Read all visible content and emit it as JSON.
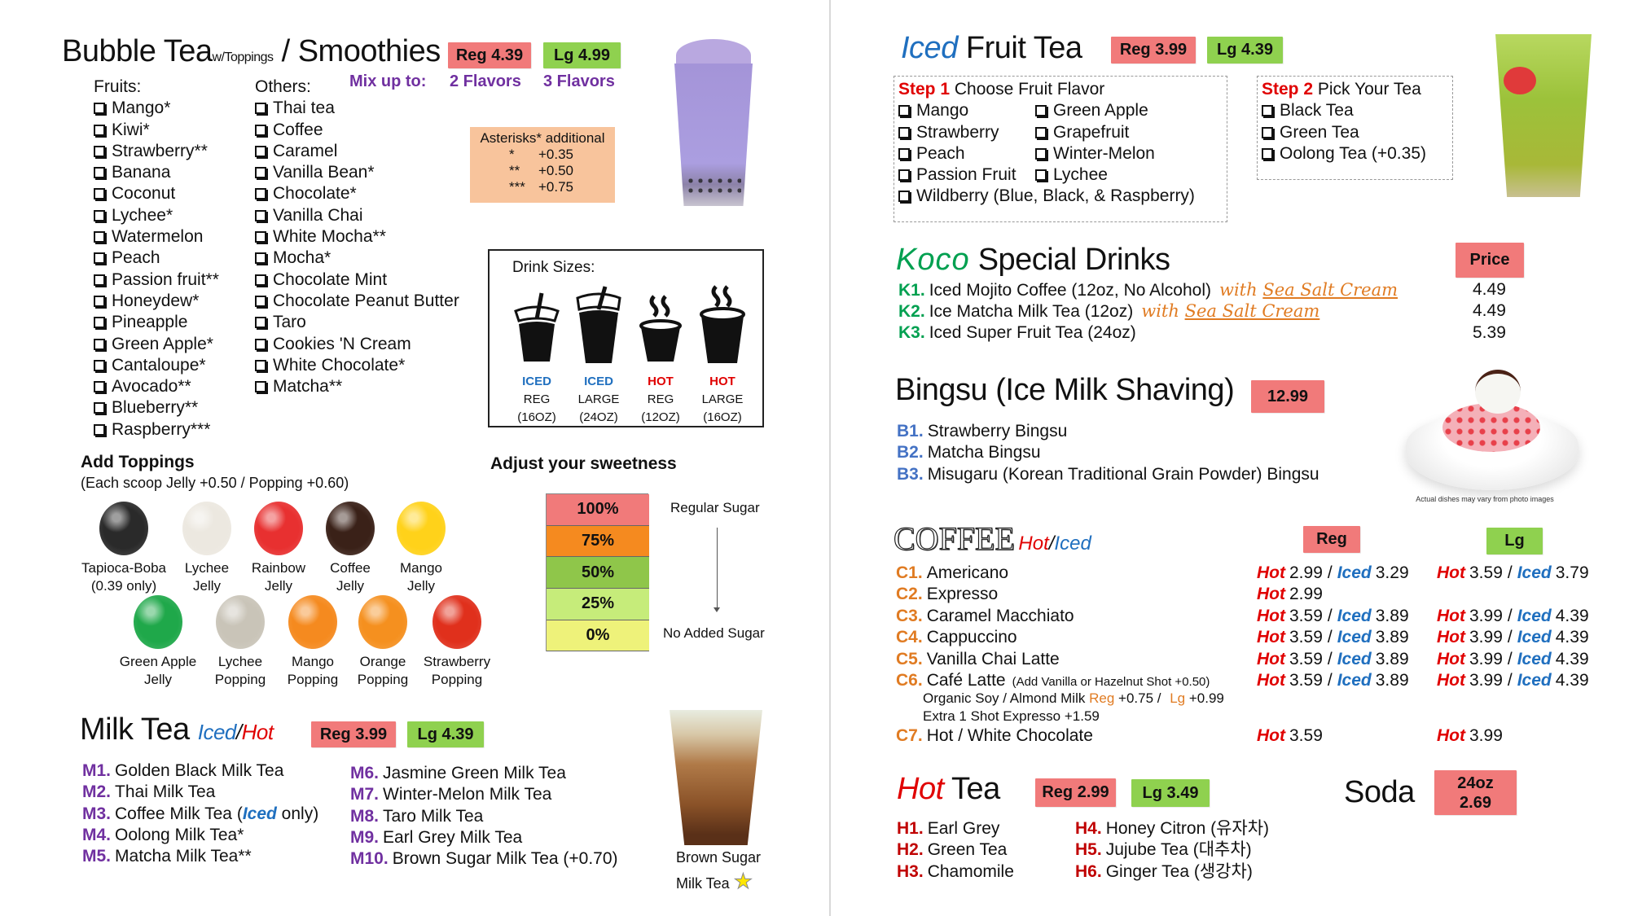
{
  "bubble_tea": {
    "title": "Bubble Tea",
    "title_small": "w/Toppings",
    "title_rest": "/ Smoothies",
    "reg_price": "Reg 4.39",
    "lg_price": "Lg 4.99",
    "mix_label": "Mix up to:",
    "mix_reg": "2 Flavors",
    "mix_lg": "3 Flavors",
    "fruits_label": "Fruits:",
    "fruits": [
      "Mango*",
      "Kiwi*",
      "Strawberry**",
      "Banana",
      "Coconut",
      "Lychee*",
      "Watermelon",
      "Peach",
      "Passion fruit**",
      "Honeydew*",
      "Pineapple",
      "Green Apple*",
      "Cantaloupe*",
      "Avocado**",
      "Blueberry**",
      "Raspberry***"
    ],
    "others_label": "Others:",
    "others": [
      "Thai tea",
      "Coffee",
      "Caramel",
      "Vanilla Bean*",
      "Chocolate*",
      "Vanilla Chai",
      "White Mocha**",
      "Mocha*",
      "Chocolate Mint",
      "Chocolate Peanut Butter",
      "Taro",
      "Cookies 'N Cream",
      "White Chocolate*",
      "Matcha**"
    ],
    "asterisks": {
      "title": "Asterisks* additional",
      "rows": [
        {
          "mark": "*",
          "price": "+0.35"
        },
        {
          "mark": "**",
          "price": "+0.50"
        },
        {
          "mark": "***",
          "price": "+0.75"
        }
      ]
    }
  },
  "drink_sizes": {
    "title": "Drink Sizes:",
    "cups": [
      {
        "type": "ICED",
        "size": "REG",
        "oz": "(16OZ)",
        "color": "#1f6fbf"
      },
      {
        "type": "ICED",
        "size": "LARGE",
        "oz": "(24OZ)",
        "color": "#1f6fbf"
      },
      {
        "type": "HOT",
        "size": "REG",
        "oz": "(12OZ)",
        "color": "#e00000"
      },
      {
        "type": "HOT",
        "size": "LARGE",
        "oz": "(16OZ)",
        "color": "#e00000"
      }
    ]
  },
  "toppings": {
    "title": "Add Toppings",
    "subtitle": "(Each scoop Jelly +0.50 / Popping +0.60)",
    "row1": [
      {
        "name": "Tapioca-Boba",
        "note": "(0.39 only)",
        "color": "#2a2a2a"
      },
      {
        "name": "Lychee",
        "note": "Jelly",
        "color": "#ece8e0"
      },
      {
        "name": "Rainbow",
        "note": "Jelly",
        "color": "#e83030"
      },
      {
        "name": "Coffee",
        "note": "Jelly",
        "color": "#3a2118"
      },
      {
        "name": "Mango",
        "note": "Jelly",
        "color": "#ffd21a"
      }
    ],
    "row2": [
      {
        "name": "Green Apple",
        "note": "Jelly",
        "color": "#1fa84a"
      },
      {
        "name": "Lychee",
        "note": "Popping",
        "color": "#c9c4b8"
      },
      {
        "name": "Mango",
        "note": "Popping",
        "color": "#f58a1f"
      },
      {
        "name": "Orange",
        "note": "Popping",
        "color": "#f5901f"
      },
      {
        "name": "Strawberry",
        "note": "Popping",
        "color": "#e0301c"
      }
    ]
  },
  "sweetness": {
    "title": "Adjust your sweetness",
    "levels": [
      {
        "label": "100%",
        "color": "#f17a7a"
      },
      {
        "label": "75%",
        "color": "#f58a1f"
      },
      {
        "label": "50%",
        "color": "#8fc64a"
      },
      {
        "label": "25%",
        "color": "#c6ec7a"
      },
      {
        "label": "0%",
        "color": "#eef27a"
      }
    ],
    "top_label": "Regular Sugar",
    "bottom_label": "No Added Sugar"
  },
  "milk_tea": {
    "title": "Milk Tea",
    "iced": "Iced",
    "slash": "/",
    "hot": "Hot",
    "reg_price": "Reg 3.99",
    "lg_price": "Lg 4.39",
    "items_left": [
      {
        "code": "M1.",
        "name": "Golden Black Milk Tea"
      },
      {
        "code": "M2.",
        "name": "Thai Milk Tea"
      },
      {
        "code": "M3.",
        "name": "Coffee Milk Tea (",
        "iced": "Iced",
        "after": " only)"
      },
      {
        "code": "M4.",
        "name": "Oolong Milk Tea*"
      },
      {
        "code": "M5.",
        "name": "Matcha Milk Tea**"
      }
    ],
    "items_right": [
      {
        "code": "M6.",
        "name": "Jasmine Green Milk Tea"
      },
      {
        "code": "M7.",
        "name": "Winter-Melon Milk Tea"
      },
      {
        "code": "M8.",
        "name": "Taro Milk Tea"
      },
      {
        "code": "M9.",
        "name": "Earl Grey Milk Tea"
      },
      {
        "code": "M10.",
        "name": "Brown Sugar Milk Tea (+0.70)"
      }
    ],
    "feature_line1": "Brown Sugar",
    "feature_line2": "Milk Tea"
  },
  "fruit_tea": {
    "title_iced": "Iced",
    "title_rest": "Fruit Tea",
    "reg_price": "Reg 3.99",
    "lg_price": "Lg 4.39",
    "step1_label": "Step 1",
    "step1_text": "Choose Fruit Flavor",
    "step1_col1": [
      "Mango",
      "Strawberry",
      "Peach",
      "Passion Fruit"
    ],
    "step1_col2": [
      "Green Apple",
      "Grapefruit",
      "Winter-Melon",
      "Lychee"
    ],
    "step1_wide": "Wildberry (Blue, Black, & Raspberry)",
    "step2_label": "Step 2",
    "step2_text": "Pick Your Tea",
    "step2_items": [
      "Black Tea",
      "Green Tea",
      "Oolong Tea (+0.35)"
    ]
  },
  "koco": {
    "title_brand": "Koco",
    "title_rest": "Special Drinks",
    "price_header": "Price",
    "items": [
      {
        "code": "K1.",
        "name": "Iced Mojito Coffee (12oz, No Alcohol)",
        "with": "with",
        "extra": "Sea Salt Cream",
        "price": "4.49"
      },
      {
        "code": "K2.",
        "name": "Ice Matcha Milk Tea (12oz)",
        "with": "with",
        "extra": "Sea Salt Cream",
        "price": "4.49"
      },
      {
        "code": "K3.",
        "name": "Iced Super Fruit Tea (24oz)",
        "price": "5.39"
      }
    ]
  },
  "bingsu": {
    "title": "Bingsu (Ice Milk Shaving)",
    "price": "12.99",
    "items": [
      {
        "code": "B1.",
        "name": "Strawberry Bingsu"
      },
      {
        "code": "B2.",
        "name": "Matcha Bingsu"
      },
      {
        "code": "B3.",
        "name": "Misugaru (Korean Traditional Grain Powder) Bingsu"
      }
    ],
    "photo_note": "Actual dishes may vary from photo images"
  },
  "coffee": {
    "title": "COFFEE",
    "hot_label": "Hot",
    "slash": "/",
    "iced_label": "Iced",
    "reg_header": "Reg",
    "lg_header": "Lg",
    "items": [
      {
        "code": "C1.",
        "name": "Americano",
        "reg_hot": "2.99",
        "reg_iced": "3.29",
        "lg_hot": "3.59",
        "lg_iced": "3.79"
      },
      {
        "code": "C2.",
        "name": "Expresso",
        "reg_hot": "2.99"
      },
      {
        "code": "C3.",
        "name": "Caramel Macchiato",
        "reg_hot": "3.59",
        "reg_iced": "3.89",
        "lg_hot": "3.99",
        "lg_iced": "4.39"
      },
      {
        "code": "C4.",
        "name": "Cappuccino",
        "reg_hot": "3.59",
        "reg_iced": "3.89",
        "lg_hot": "3.99",
        "lg_iced": "4.39"
      },
      {
        "code": "C5.",
        "name": "Vanilla Chai Latte",
        "reg_hot": "3.59",
        "reg_iced": "3.89",
        "lg_hot": "3.99",
        "lg_iced": "4.39"
      },
      {
        "code": "C6.",
        "name": "Café Latte",
        "note": "(Add Vanilla or Hazelnut Shot +0.50)",
        "reg_hot": "3.59",
        "reg_iced": "3.89",
        "lg_hot": "3.99",
        "lg_iced": "4.39"
      },
      {
        "code": "C7.",
        "name": "Hot / White Chocolate",
        "reg_hot": "3.59",
        "lg_hot": "3.99"
      }
    ],
    "milk_note_prefix": "Organic Soy / Almond Milk",
    "milk_reg": "Reg",
    "milk_reg_price": "+0.75 /",
    "milk_lg": "Lg",
    "milk_lg_price": "+0.99",
    "shot_note": "Extra 1 Shot Expresso +1.59"
  },
  "hot_tea": {
    "title_hot": "Hot",
    "title_rest": "Tea",
    "reg_price": "Reg 2.99",
    "lg_price": "Lg 3.49",
    "items_left": [
      {
        "code": "H1.",
        "name": "Earl Grey"
      },
      {
        "code": "H2.",
        "name": "Green Tea"
      },
      {
        "code": "H3.",
        "name": "Chamomile"
      }
    ],
    "items_right": [
      {
        "code": "H4.",
        "name": "Honey Citron (유자차)"
      },
      {
        "code": "H5.",
        "name": "Jujube Tea (대추차)"
      },
      {
        "code": "H6.",
        "name": "Ginger Tea (생강차)"
      }
    ]
  },
  "soda": {
    "title": "Soda",
    "size": "24oz",
    "price": "2.69"
  },
  "colors": {
    "reg_badge": "#f17a7a",
    "lg_badge": "#8fd14f",
    "hot": "#e00000",
    "iced": "#1f6fbf",
    "milk_tea_code": "#7030a0",
    "koco_code": "#00a050",
    "bingsu_code": "#4472c4",
    "coffee_code": "#e07b22",
    "hot_tea_code": "#c00000"
  }
}
